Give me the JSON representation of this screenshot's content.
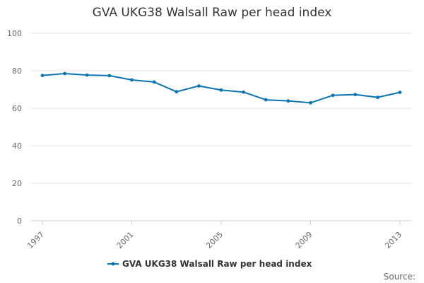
{
  "chart_data": {
    "type": "line",
    "title": "GVA UKG38 Walsall Raw per head index",
    "xlabel": "",
    "ylabel": "",
    "x": [
      1997,
      1998,
      1999,
      2000,
      2001,
      2002,
      2003,
      2004,
      2005,
      2006,
      2007,
      2008,
      2009,
      2010,
      2011,
      2012,
      2013
    ],
    "series": [
      {
        "name": "GVA UKG38 Walsall Raw per head index",
        "color": "#0b75b3",
        "values": [
          77.5,
          78.5,
          77.7,
          77.4,
          75.1,
          74.0,
          68.8,
          71.9,
          69.7,
          68.6,
          64.5,
          63.9,
          62.9,
          66.9,
          67.3,
          65.8,
          68.5
        ]
      }
    ],
    "ylim": [
      0,
      100
    ],
    "y_ticks": [
      0,
      20,
      40,
      60,
      80,
      100
    ],
    "x_tick_labels": [
      "1997",
      "2001",
      "2005",
      "2009",
      "2013"
    ],
    "grid": true,
    "legend_position": "bottom",
    "source_label": "Source:"
  }
}
